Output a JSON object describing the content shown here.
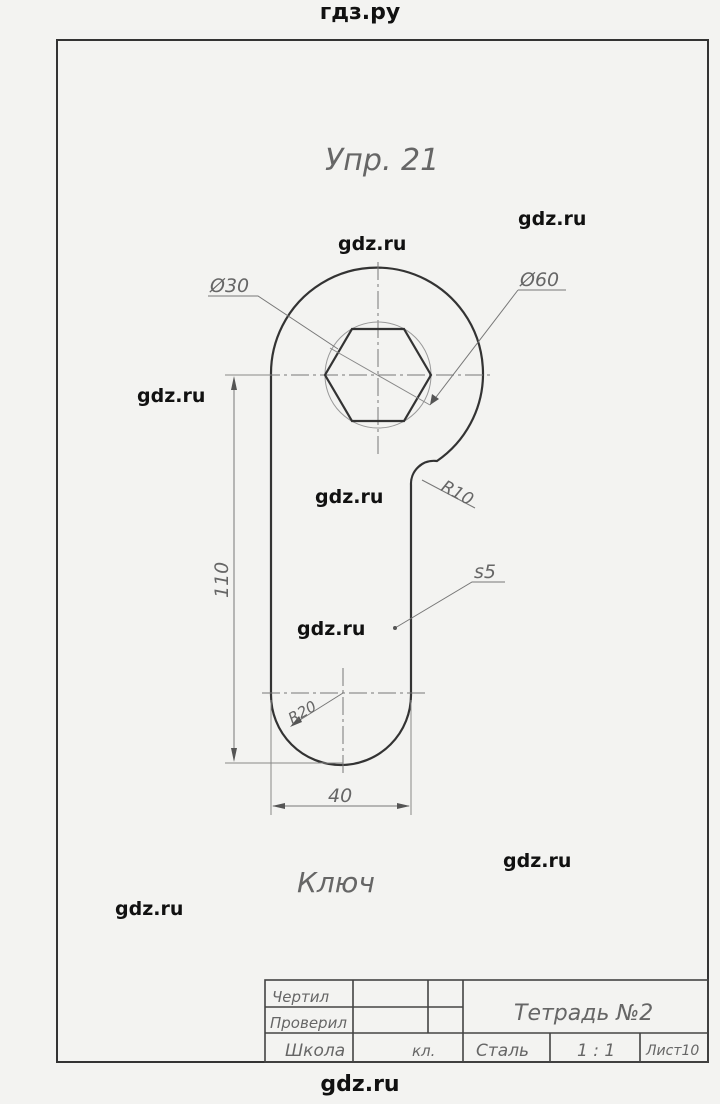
{
  "site_header": "гдз.ру",
  "site_footer": "gdz.ru",
  "watermark": "gdz.ru",
  "drawing": {
    "exercise_title": "Упр. 21",
    "part_name": "Ключ",
    "dimensions": {
      "small_diameter": "Ø30",
      "large_diameter": "Ø60",
      "fillet_radius": "R10",
      "thickness": "s5",
      "length": "110",
      "end_radius": "R20",
      "width": "40"
    }
  },
  "title_block": {
    "drawn_label": "Чертил",
    "checked_label": "Проверил",
    "school_label": "Школа",
    "class_label": "кл.",
    "notebook": "Тетрадь №2",
    "material": "Сталь",
    "scale": "1 : 1",
    "sheet": "Лист10"
  }
}
